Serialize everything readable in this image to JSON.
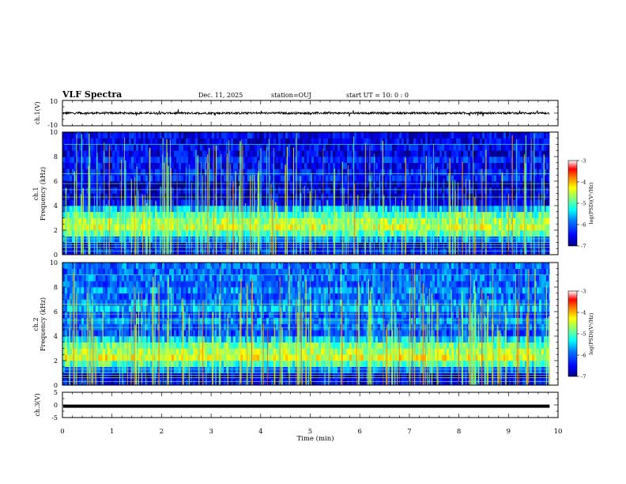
{
  "header": {
    "title": "VLF Spectra",
    "date": "Dec. 11, 2025",
    "station": "station=OUJ",
    "start": "start  UT =   10: 0  : 0"
  },
  "colors": {
    "cmap": [
      "#000080",
      "#0000ff",
      "#0080ff",
      "#00ffff",
      "#80ff80",
      "#ffff00",
      "#ff8000",
      "#ff0000",
      "#ffffff"
    ],
    "trace": "#000000"
  },
  "chart_data": [
    {
      "type": "line",
      "name": "ch1-waveform",
      "ylabel": "ch.1(V)",
      "ylim": [
        -10,
        10
      ],
      "yticks": [
        "10",
        "-10"
      ],
      "baseline": 0,
      "xlim": [
        0,
        10
      ],
      "data_end_min": 9.83
    },
    {
      "type": "heatmap",
      "name": "ch1-spectrogram",
      "ylabel": "ch.1",
      "ylabel2": "Frequency (kHz)",
      "ylim": [
        0,
        10
      ],
      "yticks": [
        "0",
        "2",
        "4",
        "6",
        "8",
        "10"
      ],
      "xlim": [
        0,
        10
      ],
      "data_end_min": 9.83,
      "colorbar": {
        "label": "log(PSD)(V²/Hz)",
        "range": [
          -7,
          -3
        ],
        "ticks": [
          "-3",
          "-4",
          "-5",
          "-6",
          "-7"
        ]
      },
      "freq_profile_khz": [
        0.25,
        0.75,
        1.25,
        1.75,
        2.25,
        2.75,
        3.25,
        3.75,
        4.25,
        4.75,
        5.25,
        5.75,
        6.25,
        6.75,
        7.25,
        7.75,
        8.25,
        8.75,
        9.25,
        9.75
      ],
      "mean_log_psd": [
        -6.4,
        -6.6,
        -5.8,
        -5.0,
        -4.5,
        -4.7,
        -5.0,
        -5.6,
        -6.5,
        -6.7,
        -6.6,
        -6.8,
        -6.3,
        -6.4,
        -6.5,
        -6.3,
        -6.6,
        -6.5,
        -6.6,
        -6.5
      ]
    },
    {
      "type": "heatmap",
      "name": "ch2-spectrogram",
      "ylabel": "ch.2",
      "ylabel2": "Frequency (kHz)",
      "ylim": [
        0,
        10
      ],
      "yticks": [
        "0",
        "2",
        "4",
        "6",
        "8",
        "10"
      ],
      "xlim": [
        0,
        10
      ],
      "data_end_min": 9.83,
      "colorbar": {
        "label": "log(PSD)(V²/Hz)",
        "range": [
          -7,
          -3
        ],
        "ticks": [
          "-3",
          "-4",
          "-5",
          "-6",
          "-7"
        ]
      },
      "freq_profile_khz": [
        0.25,
        0.75,
        1.25,
        1.75,
        2.25,
        2.75,
        3.25,
        3.75,
        4.25,
        4.75,
        5.25,
        5.75,
        6.25,
        6.75,
        7.25,
        7.75,
        8.25,
        8.75,
        9.25,
        9.75
      ],
      "mean_log_psd": [
        -6.5,
        -6.7,
        -5.9,
        -5.1,
        -4.4,
        -4.6,
        -4.9,
        -5.5,
        -6.1,
        -6.0,
        -5.8,
        -6.1,
        -5.6,
        -5.8,
        -6.0,
        -5.8,
        -6.0,
        -5.9,
        -6.0,
        -5.9
      ]
    },
    {
      "type": "line",
      "name": "ch3-waveform",
      "ylabel": "ch.3(V)",
      "ylim": [
        -5,
        5
      ],
      "yticks": [
        "5",
        "0",
        "-5"
      ],
      "baseline": -0.5,
      "xlim": [
        0,
        10
      ],
      "data_end_min": 9.83
    }
  ],
  "xaxis": {
    "label": "Time  (min)",
    "ticks": [
      "0",
      "1",
      "2",
      "3",
      "4",
      "5",
      "6",
      "7",
      "8",
      "9",
      "10"
    ]
  }
}
